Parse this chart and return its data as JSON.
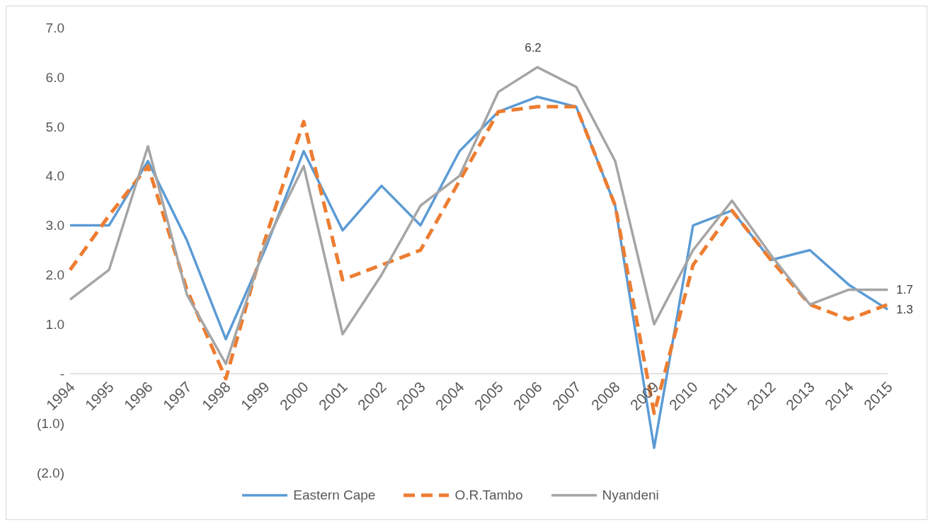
{
  "chart_data": {
    "type": "line",
    "categories": [
      "1994",
      "1995",
      "1996",
      "1997",
      "1998",
      "1999",
      "2000",
      "2001",
      "2002",
      "2003",
      "2004",
      "2005",
      "2006",
      "2007",
      "2008",
      "2009",
      "2010",
      "2011",
      "2012",
      "2013",
      "2014",
      "2015"
    ],
    "series": [
      {
        "name": "Eastern Cape",
        "color": "#5b9bd5",
        "line_style": "solid",
        "values": [
          3.0,
          3.0,
          4.3,
          2.7,
          0.7,
          2.5,
          4.5,
          2.9,
          3.8,
          3.0,
          4.5,
          5.3,
          5.6,
          5.4,
          3.4,
          -1.5,
          3.0,
          3.3,
          2.3,
          2.5,
          1.8,
          1.3
        ],
        "value_labels": [
          null,
          null,
          null,
          null,
          null,
          null,
          null,
          null,
          null,
          null,
          null,
          null,
          null,
          null,
          null,
          null,
          null,
          null,
          null,
          null,
          null,
          "1.3"
        ]
      },
      {
        "name": "O.R.Tambo",
        "color": "#ed7d31",
        "line_style": "dashed",
        "values": [
          2.1,
          3.2,
          4.2,
          1.7,
          -0.1,
          2.7,
          5.1,
          1.9,
          2.2,
          2.5,
          3.9,
          5.3,
          5.4,
          5.4,
          3.4,
          -0.8,
          2.2,
          3.3,
          2.3,
          1.4,
          1.1,
          1.4
        ]
      },
      {
        "name": "Nyandeni",
        "color": "#a5a5a5",
        "line_style": "solid",
        "values": [
          1.5,
          2.1,
          4.6,
          1.6,
          0.2,
          2.6,
          4.2,
          0.8,
          2.0,
          3.4,
          4.0,
          5.7,
          6.2,
          5.8,
          4.3,
          1.0,
          2.5,
          3.5,
          2.4,
          1.4,
          1.7,
          1.7
        ],
        "value_labels": [
          null,
          null,
          null,
          null,
          null,
          null,
          null,
          null,
          null,
          null,
          null,
          null,
          "6.2",
          null,
          null,
          null,
          null,
          null,
          null,
          null,
          null,
          "1.7"
        ]
      }
    ],
    "ylim": [
      -2,
      7
    ],
    "yticks": [
      {
        "value": -2,
        "label": "(2.0)"
      },
      {
        "value": -1,
        "label": "(1.0)"
      },
      {
        "value": 0,
        "label": "-"
      },
      {
        "value": 1,
        "label": "1.0"
      },
      {
        "value": 2,
        "label": "2.0"
      },
      {
        "value": 3,
        "label": "3.0"
      },
      {
        "value": 4,
        "label": "4.0"
      },
      {
        "value": 5,
        "label": "5.0"
      },
      {
        "value": 6,
        "label": "6.0"
      },
      {
        "value": 7,
        "label": "7.0"
      }
    ],
    "grid": false,
    "legend": "bottom",
    "marker": "none"
  }
}
